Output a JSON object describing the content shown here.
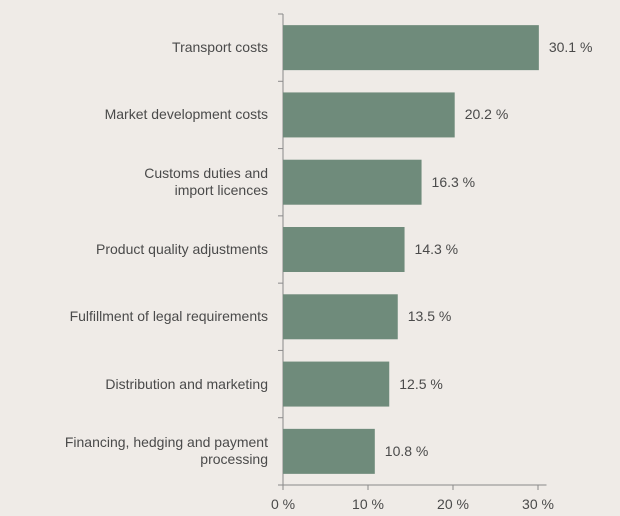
{
  "chart_data": {
    "type": "bar",
    "orientation": "horizontal",
    "categories": [
      "Transport costs",
      "Market development costs",
      "Customs duties and\nimport licences",
      "Product quality adjustments",
      "Fulfillment of legal requirements",
      "Distribution and marketing",
      "Financing, hedging and payment\nprocessing"
    ],
    "values": [
      30.1,
      20.2,
      16.3,
      14.3,
      13.5,
      12.5,
      10.8
    ],
    "value_labels": [
      "30.1 %",
      "20.2 %",
      "16.3 %",
      "14.3 %",
      "13.5 %",
      "12.5 %",
      "10.8 %"
    ],
    "color": "#6f8b7b",
    "xlim": [
      0,
      31
    ],
    "xticks": [
      {
        "value": 0,
        "label": "0 %"
      },
      {
        "value": 10,
        "label": "10 %"
      },
      {
        "value": 20,
        "label": "20 %"
      },
      {
        "value": 30,
        "label": "30 %"
      }
    ]
  }
}
